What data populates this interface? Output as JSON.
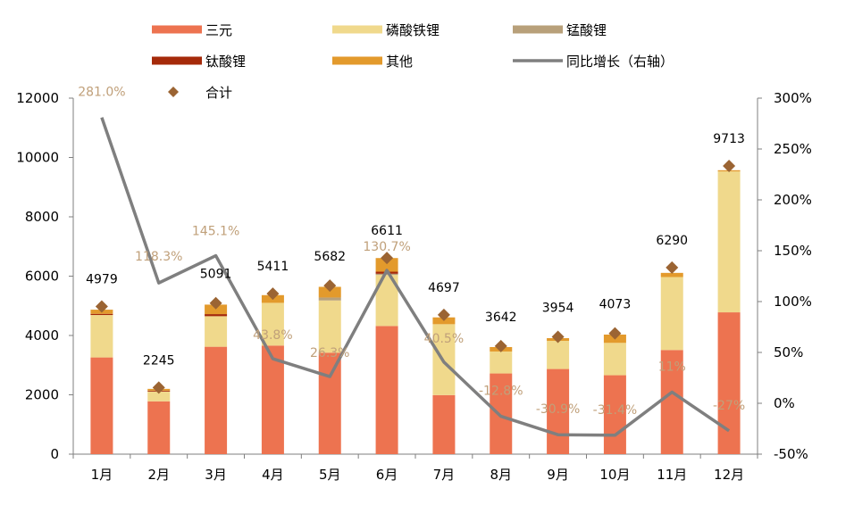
{
  "chart_data": {
    "type": "bar",
    "stacked": true,
    "categories": [
      "1月",
      "2月",
      "3月",
      "4月",
      "5月",
      "6月",
      "7月",
      "8月",
      "9月",
      "10月",
      "11月",
      "12月"
    ],
    "series": [
      {
        "name": "三元",
        "color": "#ed7350",
        "values": [
          3260,
          1780,
          3620,
          3660,
          3420,
          4320,
          1990,
          2720,
          2870,
          2660,
          3510,
          4780
        ]
      },
      {
        "name": "磷酸铁锂",
        "color": "#f0d98c",
        "values": [
          1430,
          330,
          1030,
          1440,
          1760,
          1720,
          2390,
          740,
          950,
          1090,
          2460,
          4750
        ]
      },
      {
        "name": "锰酸锂",
        "color": "#b8a07a",
        "values": [
          0,
          0,
          0,
          0,
          100,
          40,
          0,
          0,
          0,
          0,
          0,
          0
        ]
      },
      {
        "name": "钛酸锂",
        "color": "#a52a0a",
        "values": [
          40,
          30,
          70,
          0,
          0,
          70,
          0,
          0,
          0,
          0,
          0,
          0
        ]
      },
      {
        "name": "其他",
        "color": "#e39a2c",
        "values": [
          140,
          60,
          320,
          260,
          360,
          460,
          230,
          150,
          90,
          280,
          140,
          40
        ]
      }
    ],
    "totals": {
      "name": "合计",
      "color": "#9b6433",
      "values": [
        4979,
        2245,
        5091,
        5411,
        5682,
        6611,
        4697,
        3642,
        3954,
        4073,
        6290,
        9713
      ]
    },
    "growth": {
      "name": "同比增长（右轴）",
      "color": "#7f7f7f",
      "label_color": "#c0a07a",
      "values": [
        281.0,
        118.3,
        145.1,
        43.8,
        26.3,
        130.7,
        40.5,
        -12.8,
        -30.9,
        -31.4,
        11,
        -27
      ],
      "labels": [
        "281.0%",
        "118.3%",
        "145.1%",
        "43.8%",
        "26.3%",
        "130.7%",
        "40.5%",
        "-12.8%",
        "-30.9%",
        "-31.4%",
        "11%",
        "-27%"
      ]
    },
    "ylim": [
      0,
      12000
    ],
    "yticks": [
      "0",
      "2000",
      "4000",
      "6000",
      "8000",
      "10000",
      "12000"
    ],
    "y2lim": [
      -50,
      300
    ],
    "y2ticks": [
      "-50%",
      "0%",
      "50%",
      "100%",
      "150%",
      "200%",
      "250%",
      "300%"
    ],
    "grid": false,
    "legend_position": "top"
  }
}
